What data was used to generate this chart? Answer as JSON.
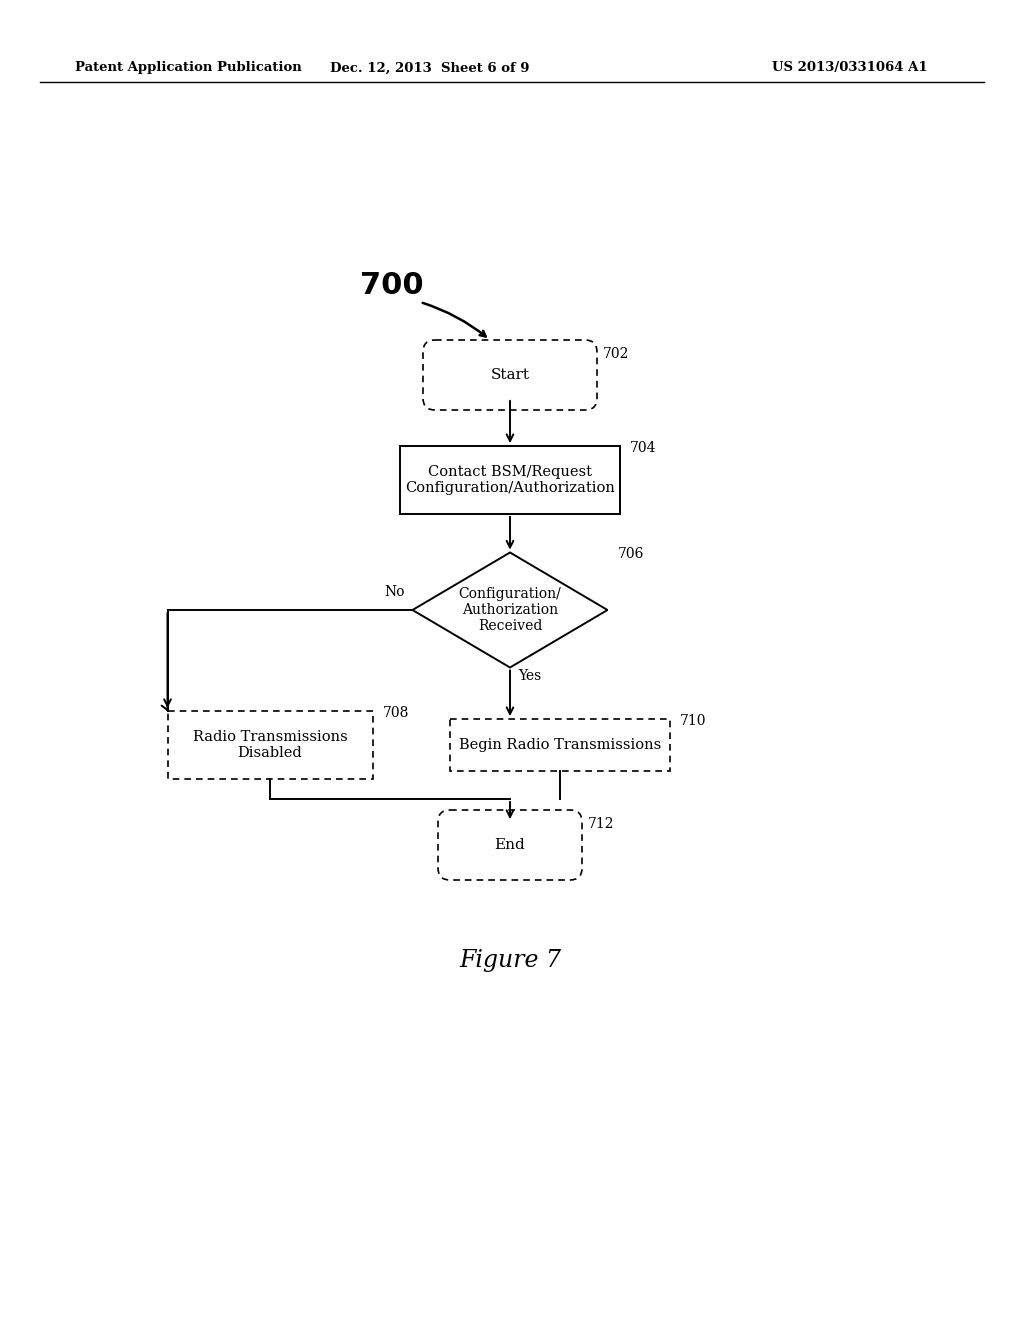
{
  "bg_color": "#ffffff",
  "header_left": "Patent Application Publication",
  "header_mid": "Dec. 12, 2013  Sheet 6 of 9",
  "header_right": "US 2013/0331064 A1",
  "figure_label": "Figure 7",
  "diagram_label": "700",
  "node_702_label": "Start",
  "node_702_num": "702",
  "node_704_label": "Contact BSM/Request\nConfiguration/Authorization",
  "node_704_num": "704",
  "node_706_label": "Configuration/\nAuthorization\nReceived",
  "node_706_num": "706",
  "node_708_label": "Radio Transmissions\nDisabled",
  "node_708_num": "708",
  "node_710_label": "Begin Radio Transmissions",
  "node_710_num": "710",
  "node_712_label": "End",
  "node_712_num": "712",
  "yes_label": "Yes",
  "no_label": "No"
}
